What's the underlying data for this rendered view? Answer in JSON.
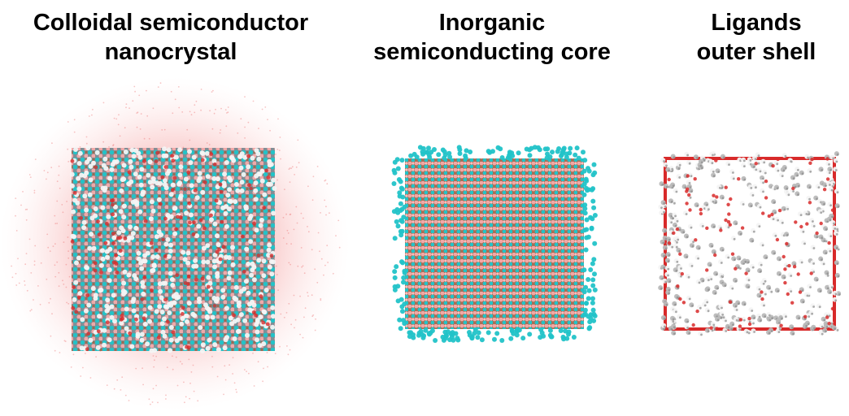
{
  "panels": [
    {
      "title_line1": "Colloidal semiconductor",
      "title_line2": "nanocrystal",
      "image": "nanocrystal-full-icon"
    },
    {
      "title_line1": "Inorganic",
      "title_line2": "semiconducting core",
      "image": "inorganic-core-icon"
    },
    {
      "title_line1": "Ligands",
      "title_line2": "outer shell",
      "image": "ligand-shell-icon"
    }
  ],
  "colors": {
    "solvent": "#f6b3b3",
    "cation_cyan": "#22c3c8",
    "anion_pink": "#f2a8a8",
    "anion_brown": "#9a6b52",
    "ligand_white": "#f4f4f4",
    "ligand_grey": "#8a8a8a",
    "oxygen_red": "#d82a2a"
  }
}
